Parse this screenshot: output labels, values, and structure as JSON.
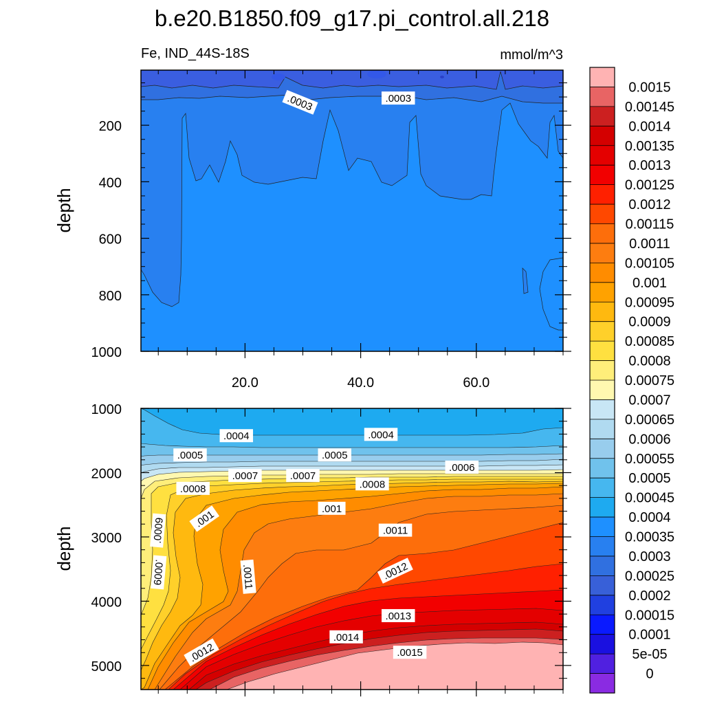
{
  "title": "b.e20.B1850.f09_g17.pi_control.all.218",
  "top_left_label": "Fe, IND_44S-18S",
  "top_right_label": "mmol/m^3",
  "chart_data": [
    {
      "type": "heatmap",
      "panel": "upper",
      "ylabel": "depth",
      "xlabel": "",
      "xlim": [
        2,
        75
      ],
      "ylim": [
        1000,
        5
      ],
      "xticks": [
        "20.0",
        "40.0",
        "60.0"
      ],
      "yticks": [
        "200",
        "400",
        "600",
        "800",
        "1000"
      ],
      "contour_labels": [
        {
          "text": ".0003",
          "x": 29.5,
          "y": 120,
          "rot": 22
        },
        {
          "text": ".0003",
          "x": 46.5,
          "y": 105,
          "rot": 0
        }
      ],
      "description_levels": [
        0.0002,
        0.00025,
        0.0003,
        0.00035
      ]
    },
    {
      "type": "heatmap",
      "panel": "lower",
      "ylabel": "depth",
      "xlabel": "",
      "xlim": [
        2,
        75
      ],
      "ylim": [
        5375,
        1000
      ],
      "xticks": [
        "",
        "",
        ""
      ],
      "yticks": [
        "1000",
        "2000",
        "3000",
        "4000",
        "5000"
      ],
      "contour_labels": [
        {
          "text": ".0004",
          "x": 18.5,
          "y": 1430,
          "rot": 0
        },
        {
          "text": ".0004",
          "x": 43.5,
          "y": 1410,
          "rot": 0
        },
        {
          "text": ".0005",
          "x": 10.5,
          "y": 1730,
          "rot": 0
        },
        {
          "text": ".0005",
          "x": 35.5,
          "y": 1730,
          "rot": 0
        },
        {
          "text": ".0006",
          "x": 57.5,
          "y": 1920,
          "rot": 0
        },
        {
          "text": ".0007",
          "x": 20,
          "y": 2050,
          "rot": 0
        },
        {
          "text": ".0007",
          "x": 30,
          "y": 2050,
          "rot": 0
        },
        {
          "text": ".0008",
          "x": 11,
          "y": 2250,
          "rot": 0
        },
        {
          "text": ".0008",
          "x": 42,
          "y": 2180,
          "rot": 0
        },
        {
          "text": ".001",
          "x": 13,
          "y": 2720,
          "rot": -35
        },
        {
          "text": ".001",
          "x": 35,
          "y": 2560,
          "rot": 0
        },
        {
          "text": ".0009",
          "x": 5,
          "y": 2900,
          "rot": -85
        },
        {
          "text": ".0011",
          "x": 46,
          "y": 2900,
          "rot": 0
        },
        {
          "text": ".0011",
          "x": 20.5,
          "y": 3620,
          "rot": 85
        },
        {
          "text": ".0009",
          "x": 5,
          "y": 3550,
          "rot": 95
        },
        {
          "text": ".0012",
          "x": 46,
          "y": 3530,
          "rot": -25
        },
        {
          "text": ".0013",
          "x": 46.5,
          "y": 4230,
          "rot": 0
        },
        {
          "text": ".0014",
          "x": 37.5,
          "y": 4560,
          "rot": 0
        },
        {
          "text": ".0012",
          "x": 12.5,
          "y": 4800,
          "rot": -30
        },
        {
          "text": ".0015",
          "x": 48.5,
          "y": 4800,
          "rot": 0
        }
      ]
    }
  ],
  "colorbar": {
    "labels": [
      "0.0015",
      "0.00145",
      "0.0014",
      "0.00135",
      "0.0013",
      "0.00125",
      "0.0012",
      "0.00115",
      "0.0011",
      "0.00105",
      "0.001",
      "0.00095",
      "0.0009",
      "0.00085",
      "0.0008",
      "0.00075",
      "0.0007",
      "0.00065",
      "0.0006",
      "0.00055",
      "0.0005",
      "0.00045",
      "0.0004",
      "0.00035",
      "0.0003",
      "0.00025",
      "0.0002",
      "0.00015",
      "0.0001",
      "5e-05",
      "0"
    ],
    "colors": [
      "#ffb3b3",
      "#e86464",
      "#cc2020",
      "#d40000",
      "#e40000",
      "#f20000",
      "#ff2000",
      "#ff4800",
      "#fd6e0b",
      "#fd7d10",
      "#ff8c00",
      "#ffa200",
      "#ffb90f",
      "#ffd02a",
      "#ffe040",
      "#ffee7a",
      "#fff8b0",
      "#c8e6f5",
      "#b0daf0",
      "#98cded",
      "#70c2ec",
      "#46b7ef",
      "#1eaaf0",
      "#1e90ff",
      "#2880f0",
      "#3070e0",
      "#3860d8",
      "#2040e0",
      "#0a1aff",
      "#1a10e0",
      "#5020e0",
      "#8a2be2"
    ]
  },
  "colors": {
    "upper_background": "#1e90ff",
    "upper_mid": "#2880f0",
    "upper_band": "#3070e0",
    "upper_surface": "#3a5ee0"
  }
}
